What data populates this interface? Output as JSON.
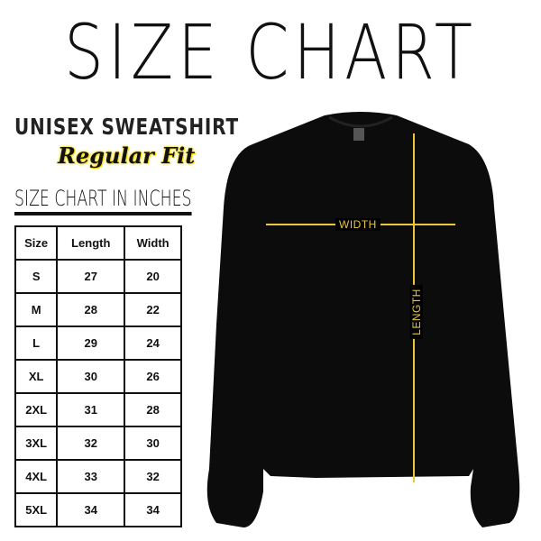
{
  "title": "SIZE CHART",
  "product": "UNISEX SWEATSHIRT",
  "fit": "Regular Fit",
  "chart_heading": "SIZE CHART IN INCHES",
  "table": {
    "headers": [
      "Size",
      "Length",
      "Width"
    ],
    "rows": [
      [
        "S",
        "27",
        "20"
      ],
      [
        "M",
        "28",
        "22"
      ],
      [
        "L",
        "29",
        "24"
      ],
      [
        "XL",
        "30",
        "26"
      ],
      [
        "2XL",
        "31",
        "28"
      ],
      [
        "3XL",
        "32",
        "30"
      ],
      [
        "4XL",
        "33",
        "32"
      ],
      [
        "5XL",
        "34",
        "34"
      ]
    ]
  },
  "measure": {
    "width_label": "WIDTH",
    "length_label": "LENGTH",
    "line_color": "#e9c63b"
  },
  "colors": {
    "garment": "#0c0c0c",
    "accent": "#f5d90a"
  }
}
